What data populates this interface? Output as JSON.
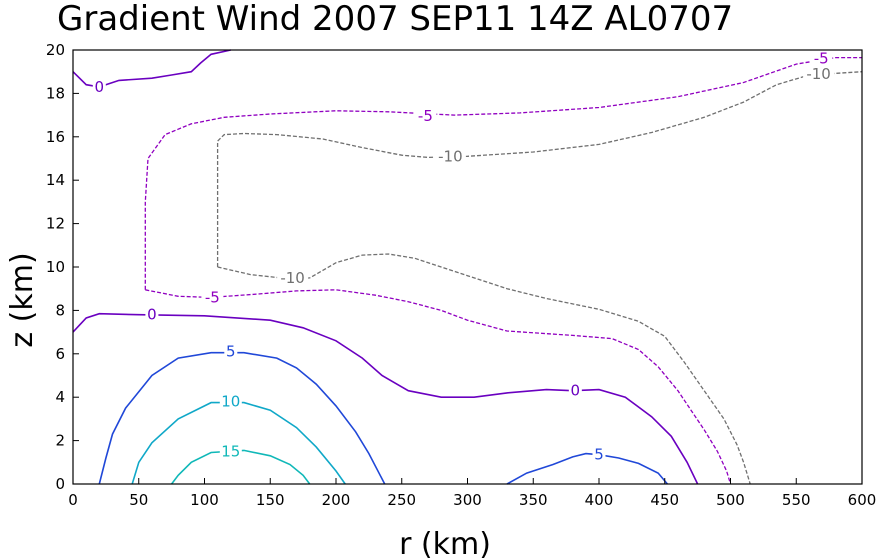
{
  "chart_data": {
    "type": "contour",
    "title": "Gradient Wind 2007 SEP11 14Z  AL0707",
    "xlabel": "r (km)",
    "ylabel": "z (km)",
    "xlim": [
      0,
      600
    ],
    "ylim": [
      0,
      20
    ],
    "xticks": [
      0,
      50,
      100,
      150,
      200,
      250,
      300,
      350,
      400,
      450,
      500,
      550,
      600
    ],
    "yticks": [
      0,
      2,
      4,
      6,
      8,
      10,
      12,
      14,
      16,
      18,
      20
    ],
    "grid": false,
    "contours": [
      {
        "level": -10,
        "label": "-10",
        "color": "#707070",
        "dashed": true,
        "segments": [
          {
            "points": [
              [
                110,
                10.0
              ],
              [
                110,
                12.0
              ],
              [
                110,
                14.0
              ],
              [
                110,
                15.8
              ],
              [
                115,
                16.1
              ],
              [
                130,
                16.15
              ],
              [
                155,
                16.1
              ],
              [
                190,
                15.9
              ],
              [
                220,
                15.5
              ],
              [
                250,
                15.15
              ],
              [
                270,
                15.05
              ],
              [
                300,
                15.1
              ],
              [
                350,
                15.3
              ],
              [
                400,
                15.65
              ],
              [
                440,
                16.2
              ],
              [
                480,
                16.9
              ],
              [
                510,
                17.6
              ],
              [
                535,
                18.4
              ],
              [
                560,
                18.85
              ],
              [
                600,
                19.0
              ]
            ],
            "labels": [
              {
                "x": 287,
                "y": 15.1
              },
              {
                "x": 567,
                "y": 18.9
              }
            ]
          },
          {
            "points": [
              [
                110,
                10.0
              ],
              [
                135,
                9.65
              ],
              [
                165,
                9.45
              ],
              [
                180,
                9.5
              ],
              [
                200,
                10.2
              ],
              [
                220,
                10.55
              ],
              [
                240,
                10.6
              ],
              [
                260,
                10.4
              ],
              [
                280,
                10.0
              ],
              [
                300,
                9.6
              ],
              [
                330,
                9.0
              ],
              [
                360,
                8.55
              ],
              [
                400,
                8.05
              ],
              [
                430,
                7.5
              ],
              [
                450,
                6.8
              ],
              [
                465,
                5.6
              ],
              [
                480,
                4.3
              ],
              [
                495,
                3.0
              ],
              [
                505,
                1.8
              ],
              [
                510,
                1.0
              ],
              [
                515,
                0.0
              ]
            ],
            "labels": [
              {
                "x": 167,
                "y": 9.5
              }
            ]
          }
        ]
      },
      {
        "level": -5,
        "label": "-5",
        "color": "#9000c0",
        "dashed": true,
        "segments": [
          {
            "points": [
              [
                55,
                8.95
              ],
              [
                55,
                11.0
              ],
              [
                55,
                13.0
              ],
              [
                57,
                15.0
              ],
              [
                70,
                16.1
              ],
              [
                90,
                16.6
              ],
              [
                115,
                16.9
              ],
              [
                150,
                17.05
              ],
              [
                200,
                17.2
              ],
              [
                240,
                17.15
              ],
              [
                290,
                17.0
              ],
              [
                340,
                17.1
              ],
              [
                400,
                17.35
              ],
              [
                460,
                17.85
              ],
              [
                510,
                18.5
              ],
              [
                550,
                19.35
              ],
              [
                580,
                19.65
              ],
              [
                600,
                19.65
              ]
            ],
            "labels": [
              {
                "x": 268,
                "y": 16.95
              },
              {
                "x": 569,
                "y": 19.6
              }
            ]
          },
          {
            "points": [
              [
                55,
                8.95
              ],
              [
                80,
                8.65
              ],
              [
                105,
                8.6
              ],
              [
                140,
                8.75
              ],
              [
                170,
                8.9
              ],
              [
                200,
                8.95
              ],
              [
                230,
                8.7
              ],
              [
                255,
                8.4
              ],
              [
                280,
                8.0
              ],
              [
                300,
                7.55
              ],
              [
                330,
                7.05
              ],
              [
                380,
                6.85
              ],
              [
                410,
                6.7
              ],
              [
                430,
                6.2
              ],
              [
                445,
                5.4
              ],
              [
                460,
                4.3
              ],
              [
                470,
                3.4
              ],
              [
                480,
                2.5
              ],
              [
                490,
                1.5
              ],
              [
                497,
                0.6
              ],
              [
                500,
                0.0
              ]
            ],
            "labels": [
              {
                "x": 106,
                "y": 8.6
              }
            ]
          }
        ]
      },
      {
        "level": 0,
        "label": "0",
        "color": "#6a00c0",
        "dashed": false,
        "segments": [
          {
            "points": [
              [
                0,
                19.0
              ],
              [
                10,
                18.4
              ],
              [
                20,
                18.3
              ],
              [
                35,
                18.6
              ],
              [
                60,
                18.7
              ],
              [
                75,
                18.85
              ],
              [
                90,
                19.0
              ],
              [
                97,
                19.4
              ],
              [
                105,
                19.8
              ],
              [
                120,
                20.0
              ]
            ],
            "labels": [
              {
                "x": 20,
                "y": 18.3
              }
            ]
          },
          {
            "points": [
              [
                0,
                7.0
              ],
              [
                10,
                7.65
              ],
              [
                20,
                7.85
              ],
              [
                50,
                7.8
              ],
              [
                100,
                7.75
              ],
              [
                150,
                7.55
              ],
              [
                175,
                7.2
              ],
              [
                200,
                6.6
              ],
              [
                220,
                5.8
              ],
              [
                235,
                5.0
              ],
              [
                255,
                4.3
              ],
              [
                280,
                4.0
              ],
              [
                305,
                4.0
              ],
              [
                330,
                4.2
              ],
              [
                360,
                4.35
              ],
              [
                380,
                4.3
              ],
              [
                400,
                4.35
              ],
              [
                420,
                4.0
              ],
              [
                440,
                3.1
              ],
              [
                455,
                2.2
              ],
              [
                467,
                1.0
              ],
              [
                475,
                0.0
              ]
            ],
            "labels": [
              {
                "x": 60,
                "y": 7.8
              },
              {
                "x": 382,
                "y": 4.3
              }
            ]
          }
        ]
      },
      {
        "level": 5,
        "label": "5",
        "color": "#2048d8",
        "dashed": false,
        "segments": [
          {
            "points": [
              [
                20,
                0.0
              ],
              [
                25,
                1.2
              ],
              [
                30,
                2.3
              ],
              [
                40,
                3.5
              ],
              [
                60,
                5.0
              ],
              [
                80,
                5.8
              ],
              [
                105,
                6.05
              ],
              [
                130,
                6.05
              ],
              [
                155,
                5.8
              ],
              [
                170,
                5.35
              ],
              [
                185,
                4.6
              ],
              [
                200,
                3.6
              ],
              [
                215,
                2.4
              ],
              [
                225,
                1.4
              ],
              [
                237,
                0.0
              ]
            ],
            "labels": [
              {
                "x": 120,
                "y": 6.1
              }
            ]
          },
          {
            "points": [
              [
                330,
                0.0
              ],
              [
                345,
                0.5
              ],
              [
                365,
                0.9
              ],
              [
                380,
                1.25
              ],
              [
                390,
                1.4
              ],
              [
                400,
                1.35
              ],
              [
                415,
                1.2
              ],
              [
                430,
                0.95
              ],
              [
                445,
                0.5
              ],
              [
                452,
                0.0
              ]
            ],
            "labels": [
              {
                "x": 400,
                "y": 1.35
              }
            ]
          }
        ]
      },
      {
        "level": 10,
        "label": "10",
        "color": "#10a8c8",
        "dashed": false,
        "segments": [
          {
            "points": [
              [
                45,
                0.0
              ],
              [
                50,
                1.0
              ],
              [
                60,
                1.9
              ],
              [
                80,
                3.0
              ],
              [
                105,
                3.75
              ],
              [
                130,
                3.75
              ],
              [
                150,
                3.4
              ],
              [
                170,
                2.6
              ],
              [
                185,
                1.7
              ],
              [
                200,
                0.6
              ],
              [
                207,
                0.0
              ]
            ],
            "labels": [
              {
                "x": 120,
                "y": 3.8
              }
            ]
          }
        ]
      },
      {
        "level": 15,
        "label": "15",
        "color": "#10b8b8",
        "dashed": false,
        "segments": [
          {
            "points": [
              [
                75,
                0.0
              ],
              [
                80,
                0.4
              ],
              [
                90,
                1.0
              ],
              [
                105,
                1.45
              ],
              [
                130,
                1.55
              ],
              [
                150,
                1.3
              ],
              [
                165,
                0.9
              ],
              [
                175,
                0.4
              ],
              [
                180,
                0.0
              ]
            ],
            "labels": [
              {
                "x": 120,
                "y": 1.5
              }
            ]
          }
        ]
      }
    ]
  }
}
